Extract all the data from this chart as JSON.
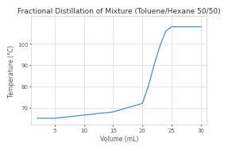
{
  "title": "Fractional Distillation of Mixture (Toluene/Hexane 50/50)",
  "xlabel": "Volume (mL)",
  "ylabel": "Temperature (°C)",
  "line_color": "#4a8fc0",
  "background_color": "#ffffff",
  "plot_bg_color": "#ffffff",
  "grid_color": "#e0e0e0",
  "spine_color": "#cccccc",
  "x_data": [
    2,
    5,
    10,
    15,
    20,
    21,
    22,
    23,
    24,
    25,
    30
  ],
  "y_data": [
    65,
    65,
    66.5,
    68,
    72,
    80,
    90,
    99,
    106,
    108,
    108
  ],
  "xlim": [
    1,
    31
  ],
  "ylim": [
    62,
    113
  ],
  "xticks": [
    5,
    10,
    15,
    20,
    25,
    30
  ],
  "yticks": [
    70,
    80,
    90,
    100
  ],
  "title_fontsize": 6.5,
  "label_fontsize": 5.5,
  "tick_fontsize": 5.0,
  "linewidth": 0.9
}
